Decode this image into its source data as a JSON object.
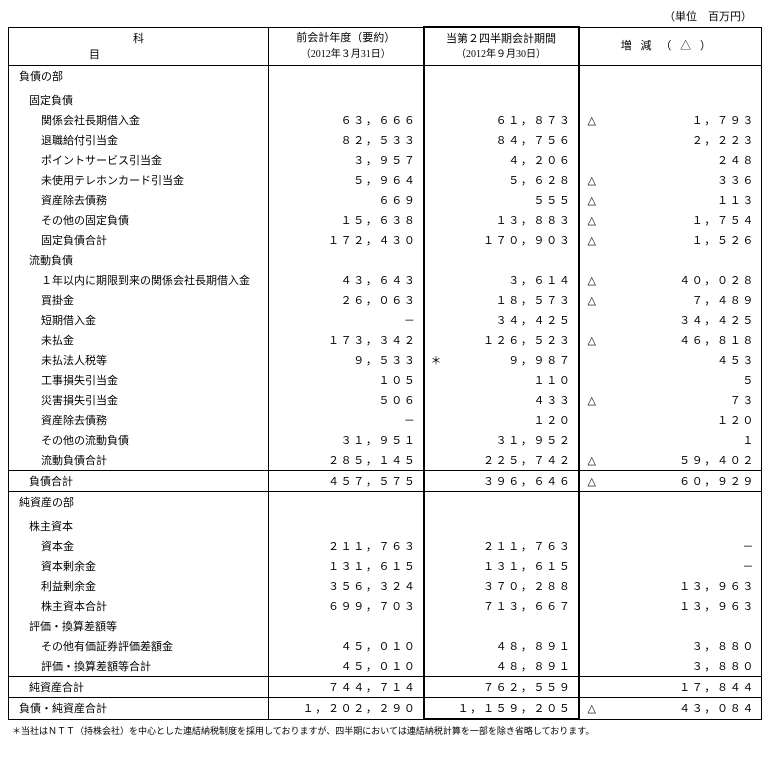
{
  "unit_label": "（単位　百万円）",
  "header": {
    "item": "科目",
    "prev_title": "前会計年度（要約）",
    "prev_sub": "（2012年３月31日）",
    "curr_title": "当第２四半期会計期間",
    "curr_sub": "（2012年９月30日）",
    "diff": "増減（△）"
  },
  "sections": [
    {
      "type": "section",
      "label": "負債の部"
    },
    {
      "type": "group",
      "label": "固定負債"
    },
    {
      "type": "row",
      "label": "関係会社長期借入金",
      "prev": "６３，６６６",
      "curr": "６１，８７３",
      "mark": "△",
      "diff": "１，７９３"
    },
    {
      "type": "row",
      "label": "退職給付引当金",
      "prev": "８２，５３３",
      "curr": "８４，７５６",
      "mark": "",
      "diff": "２，２２３"
    },
    {
      "type": "row",
      "label": "ポイントサービス引当金",
      "prev": "３，９５７",
      "curr": "４，２０６",
      "mark": "",
      "diff": "２４８"
    },
    {
      "type": "row",
      "label": "未使用テレホンカード引当金",
      "prev": "５，９６４",
      "curr": "５，６２８",
      "mark": "△",
      "diff": "３３６"
    },
    {
      "type": "row",
      "label": "資産除去債務",
      "prev": "６６９",
      "curr": "５５５",
      "mark": "△",
      "diff": "１１３"
    },
    {
      "type": "row",
      "label": "その他の固定負債",
      "prev": "１５，６３８",
      "curr": "１３，８８３",
      "mark": "△",
      "diff": "１，７５４"
    },
    {
      "type": "row",
      "label": "固定負債合計",
      "prev": "１７２，４３０",
      "curr": "１７０，９０３",
      "mark": "△",
      "diff": "１，５２６"
    },
    {
      "type": "group",
      "label": "流動負債"
    },
    {
      "type": "row",
      "label": "１年以内に期限到来の関係会社長期借入金",
      "prev": "４３，６４３",
      "curr": "３，６１４",
      "mark": "△",
      "diff": "４０，０２８"
    },
    {
      "type": "row",
      "label": "買掛金",
      "prev": "２６，０６３",
      "curr": "１８，５７３",
      "mark": "△",
      "diff": "７，４８９"
    },
    {
      "type": "row",
      "label": "短期借入金",
      "prev": "－",
      "curr": "３４，４２５",
      "mark": "",
      "diff": "３４，４２５"
    },
    {
      "type": "row",
      "label": "未払金",
      "prev": "１７３，３４２",
      "curr": "１２６，５２３",
      "mark": "△",
      "diff": "４６，８１８"
    },
    {
      "type": "row",
      "label": "未払法人税等",
      "prev": "９，５３３",
      "curr": "９，９８７",
      "star": "＊",
      "mark": "",
      "diff": "４５３"
    },
    {
      "type": "row",
      "label": "工事損失引当金",
      "prev": "１０５",
      "curr": "１１０",
      "mark": "",
      "diff": "５"
    },
    {
      "type": "row",
      "label": "災害損失引当金",
      "prev": "５０６",
      "curr": "４３３",
      "mark": "△",
      "diff": "７３"
    },
    {
      "type": "row",
      "label": "資産除去債務",
      "prev": "－",
      "curr": "１２０",
      "mark": "",
      "diff": "１２０"
    },
    {
      "type": "row",
      "label": "その他の流動負債",
      "prev": "３１，９５１",
      "curr": "３１，９５２",
      "mark": "",
      "diff": "１"
    },
    {
      "type": "row",
      "label": "流動負債合計",
      "prev": "２８５，１４５",
      "curr": "２２５，７４２",
      "mark": "△",
      "diff": "５９，４０２"
    },
    {
      "type": "total",
      "label": "負債合計",
      "prev": "４５７，５７５",
      "curr": "３９６，６４６",
      "mark": "△",
      "diff": "６０，９２９"
    },
    {
      "type": "section",
      "label": "純資産の部"
    },
    {
      "type": "group",
      "label": "株主資本"
    },
    {
      "type": "row",
      "label": "資本金",
      "prev": "２１１，７６３",
      "curr": "２１１，７６３",
      "mark": "",
      "diff": "－"
    },
    {
      "type": "row",
      "label": "資本剰余金",
      "prev": "１３１，６１５",
      "curr": "１３１，６１５",
      "mark": "",
      "diff": "－"
    },
    {
      "type": "row",
      "label": "利益剰余金",
      "prev": "３５６，３２４",
      "curr": "３７０，２８８",
      "mark": "",
      "diff": "１３，９６３"
    },
    {
      "type": "row",
      "label": "株主資本合計",
      "prev": "６９９，７０３",
      "curr": "７１３，６６７",
      "mark": "",
      "diff": "１３，９６３"
    },
    {
      "type": "group",
      "label": "評価・換算差額等"
    },
    {
      "type": "row",
      "label": "その他有価証券評価差額金",
      "prev": "４５，０１０",
      "curr": "４８，８９１",
      "mark": "",
      "diff": "３，８８０"
    },
    {
      "type": "row",
      "label": "評価・換算差額等合計",
      "prev": "４５，０１０",
      "curr": "４８，８９１",
      "mark": "",
      "diff": "３，８８０"
    },
    {
      "type": "total",
      "label": "純資産合計",
      "prev": "７４４，７１４",
      "curr": "７６２，５５９",
      "mark": "",
      "diff": "１７，８４４"
    },
    {
      "type": "grand",
      "label": "負債・純資産合計",
      "prev": "１，２０２，２９０",
      "curr": "１，１５９，２０５",
      "mark": "△",
      "diff": "４３，０８４"
    }
  ],
  "footnote": "＊当社はＮＴＴ（持株会社）を中心とした連結納税制度を採用しておりますが、四半期においては連結納税計算を一部を除き省略しております。"
}
